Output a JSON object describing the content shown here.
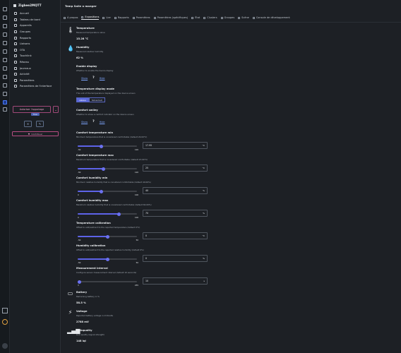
{
  "app": {
    "brand": "Zigbee2MQTT",
    "nav": [
      {
        "label": "Accueil",
        "icon": "home-icon"
      },
      {
        "label": "Tableau de bord",
        "icon": "dashboard-icon"
      },
      {
        "label": "Appareils",
        "icon": "devices-icon"
      },
      {
        "label": "Groupes",
        "icon": "groups-icon"
      },
      {
        "label": "Rapports",
        "icon": "reports-icon"
      },
      {
        "label": "Liaisons",
        "icon": "bind-icon"
      },
      {
        "label": "OTA",
        "icon": "cloud-icon"
      },
      {
        "label": "Touchlink",
        "icon": "touchlink-icon"
      },
      {
        "label": "Réseau",
        "icon": "network-icon"
      },
      {
        "label": "Journaux",
        "icon": "logs-icon"
      },
      {
        "label": "Activité",
        "icon": "activity-icon"
      },
      {
        "label": "Paramètres",
        "icon": "settings-icon"
      },
      {
        "label": "Paramètres de l'interface",
        "icon": "sliders-icon"
      }
    ],
    "permit_join": "Autoriser l'appairage",
    "permit_badge": "Tous",
    "contribute": "Contribuer"
  },
  "device": {
    "title": "Temp Salle a manger",
    "tabs": [
      {
        "label": "À propos",
        "active": false
      },
      {
        "label": "Expositions",
        "active": true
      },
      {
        "label": "Lier",
        "active": false
      },
      {
        "label": "Rapports",
        "active": false
      },
      {
        "label": "Paramètres",
        "active": false
      },
      {
        "label": "Paramètres (spécifiques)",
        "active": false
      },
      {
        "label": "État",
        "active": false
      },
      {
        "label": "Clusters",
        "active": false
      },
      {
        "label": "Groupes",
        "active": false
      },
      {
        "label": "Scène",
        "active": false
      },
      {
        "label": "Console de développement",
        "active": false
      }
    ]
  },
  "features": {
    "temperature": {
      "name": "Temperature",
      "desc": "Measured temperature value",
      "value": "15.28 °C",
      "icon": "thermometer-icon"
    },
    "humidity": {
      "name": "Humidity",
      "desc": "Measured relative humidity",
      "value": "62 %",
      "icon": "droplet-icon"
    },
    "enable_display": {
      "name": "Enable display",
      "desc": "Whether to enable the device display",
      "on": "Show",
      "q": "?",
      "off": "Hide"
    },
    "temp_display_mode": {
      "name": "Temperature display mode",
      "desc": "The unit of the temperature displayed on the device screen",
      "options": [
        "celsius",
        "fahrenheit"
      ],
      "selected": "celsius"
    },
    "comfort_smiley": {
      "name": "Comfort smiley",
      "desc": "Whether to show a comfort indicator on the device screen",
      "on": "Show",
      "q": "?",
      "off": "Hide"
    },
    "comfort_temp_min": {
      "name": "Comfort temperature min",
      "desc": "Minimum temperature that is considered comfortable (default 20.00°C)",
      "min": "-50",
      "max": "120",
      "value": "17.95",
      "unit": "°C",
      "level": 0.4
    }
  },
  "sliders": [
    {
      "key": "comfort_temp_min",
      "name": "Comfort temperature min",
      "desc": "Minimum temperature that is considered comfortable (default 20.00°C)",
      "min": "-50",
      "max": "120",
      "value": "17.95",
      "unit": "°C",
      "level": 0.4
    },
    {
      "key": "comfort_temp_max",
      "name": "Comfort temperature max",
      "desc": "Maximum temperature that is considered comfortable (default 23.00°C)",
      "min": "-50",
      "max": "120",
      "value": "25",
      "unit": "°C",
      "level": 0.44
    },
    {
      "key": "comfort_hum_min",
      "name": "Comfort humidity min",
      "desc": "Minimum relative humidity that is considered comfortable (default 40.00%)",
      "min": "0",
      "max": "100",
      "value": "40",
      "unit": "%",
      "level": 0.4
    },
    {
      "key": "comfort_hum_max",
      "name": "Comfort humidity max",
      "desc": "Maximum relative humidity that is considered comfortable (default 60.00%)",
      "min": "0",
      "max": "100",
      "value": "70",
      "unit": "%",
      "level": 0.7
    },
    {
      "key": "temp_calibration",
      "name": "Temperature calibration",
      "desc": "Offset to add/subtract to the reported temperature (default 0°C)",
      "min": "-50",
      "max": "50",
      "value": "0",
      "unit": "°C",
      "level": 0.5
    },
    {
      "key": "hum_calibration",
      "name": "Humidity calibration",
      "desc": "Offset to add/subtract to the reported relative humidity (default 0%)",
      "min": "-50",
      "max": "50",
      "value": "0",
      "unit": "%",
      "level": 0.5
    },
    {
      "key": "measurement_interval",
      "name": "Measurement interval",
      "desc": "Configure sensor measurement interval (default 10 seconds)",
      "min": "3",
      "max": "255",
      "value": "10",
      "unit": "s",
      "level": 0.03
    }
  ],
  "battery": {
    "name": "Battery",
    "desc": "Remaining battery in %",
    "value": "58.5 %",
    "icon": "battery-icon"
  },
  "voltage": {
    "name": "Voltage",
    "desc": "Reported battery voltage in millivolts",
    "value": "2788 mV",
    "icon": "bolt-icon"
  },
  "linkquality": {
    "name": "Linkquality",
    "desc": "Link quality (signal strength)",
    "value": "148 lqi",
    "icon": "signal-icon"
  },
  "colors": {
    "accent": "#5d63e8",
    "bg": "#1d2025",
    "sidebar": "#1b1f24",
    "link": "#7ea6ff",
    "pink": "#b84d82"
  }
}
